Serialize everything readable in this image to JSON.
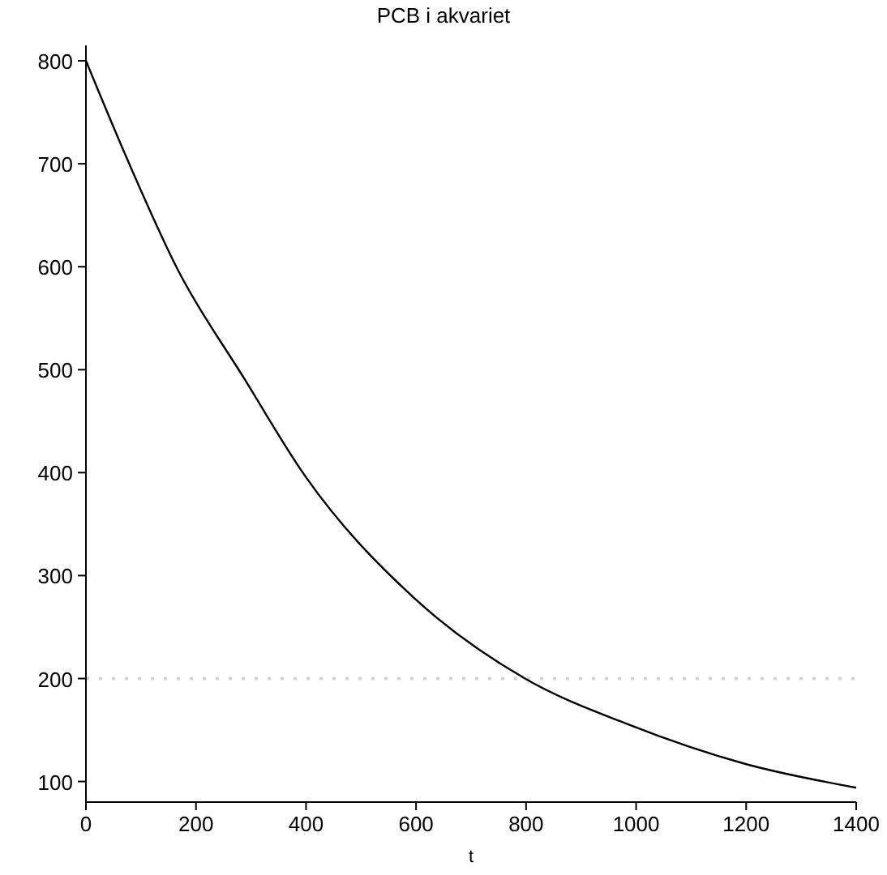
{
  "chart_data": {
    "type": "line",
    "title": "PCB i akvariet",
    "xlabel": "t",
    "x": [
      0,
      77,
      167,
      287,
      398,
      599,
      798,
      983,
      1199,
      1400
    ],
    "series": [
      {
        "color": "#000000",
        "values": [
          800,
          702,
          597,
          492,
          397,
          277,
          200,
          156,
          117,
          94
        ]
      }
    ],
    "xlim": [
      0,
      1400
    ],
    "ylim": [
      80,
      815
    ],
    "xticks": [
      0,
      200,
      400,
      600,
      800,
      1000,
      1200,
      1400
    ],
    "yticks": [
      100,
      200,
      300,
      400,
      500,
      600,
      700,
      800
    ],
    "ref_lines": [
      {
        "axis": "y",
        "value": 200,
        "color": "#d3d3d3",
        "line_style": "dotted"
      }
    ],
    "marker": "none",
    "line_style": "solid"
  }
}
